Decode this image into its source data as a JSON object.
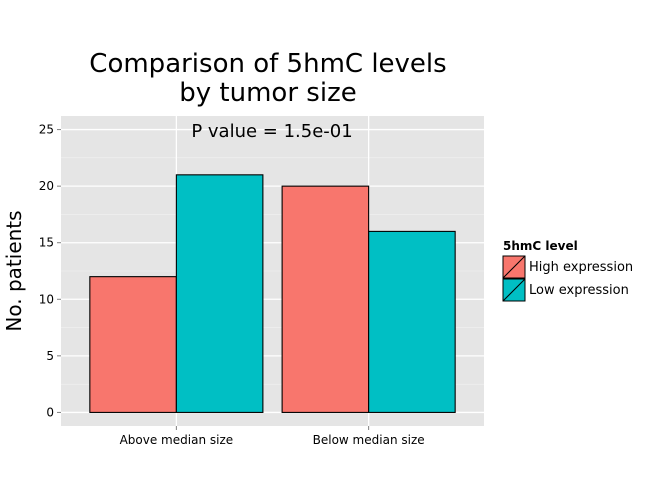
{
  "chart_data": {
    "type": "bar",
    "title": [
      "Comparison of 5hmC levels",
      "by tumor size"
    ],
    "annotation": "P value = 1.5e-01",
    "xlabel": "",
    "ylabel": "No. patients",
    "categories": [
      "Above median size",
      "Below median size"
    ],
    "series": [
      {
        "name": "High expression",
        "values": [
          12,
          20
        ],
        "color": "#F8766D"
      },
      {
        "name": "Low expression",
        "values": [
          21,
          16
        ],
        "color": "#00BFC4"
      }
    ],
    "ylim": [
      -1.2,
      26.2
    ],
    "yticks": [
      0,
      5,
      10,
      15,
      20,
      25
    ],
    "grid": true,
    "panel_background": "#E5E5E5",
    "legend": {
      "title": "5hmC level",
      "position": "right"
    }
  }
}
